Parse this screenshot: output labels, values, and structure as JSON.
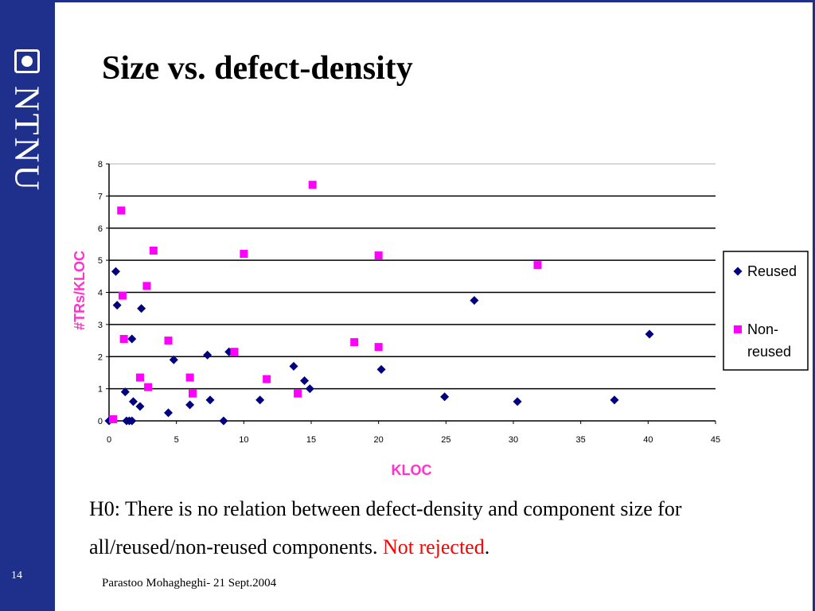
{
  "slide": {
    "title": "Size vs. defect-density",
    "page_number": "14",
    "footer": "Parastoo Mohagheghi- 21 Sept.2004",
    "logo_text": "NTNU",
    "body_text": "H0: There is no relation between defect-density and component size for all/reused/non-reused components.",
    "highlight_text": "Not rejected",
    "trailing_text": ".",
    "colors": {
      "sidebar": "#1f2f8c",
      "highlight": "#ff0000",
      "axis_label": "#ff33cc"
    }
  },
  "chart_data": {
    "type": "scatter",
    "title": "",
    "xlabel": "KLOC",
    "ylabel": "#TRs/KLOC",
    "xlim": [
      0,
      45
    ],
    "ylim": [
      0,
      8
    ],
    "x_ticks": [
      0,
      5,
      10,
      15,
      20,
      25,
      30,
      35,
      40,
      45
    ],
    "y_ticks": [
      0,
      1,
      2,
      3,
      4,
      5,
      6,
      7,
      8
    ],
    "grid": "horizontal",
    "legend": "right",
    "series": [
      {
        "name": "Reused",
        "marker": "diamond",
        "color": "#000080",
        "points": [
          [
            0,
            0
          ],
          [
            0.5,
            4.65
          ],
          [
            0.6,
            3.6
          ],
          [
            1.2,
            0.9
          ],
          [
            1.3,
            0
          ],
          [
            1.5,
            0
          ],
          [
            1.7,
            2.55
          ],
          [
            1.7,
            0
          ],
          [
            1.8,
            0.6
          ],
          [
            2.3,
            0.45
          ],
          [
            2.4,
            3.5
          ],
          [
            4.4,
            0.25
          ],
          [
            4.8,
            1.9
          ],
          [
            6,
            0.5
          ],
          [
            7.3,
            2.05
          ],
          [
            7.5,
            0.65
          ],
          [
            8.5,
            0
          ],
          [
            8.9,
            2.15
          ],
          [
            11.2,
            0.65
          ],
          [
            13.7,
            1.7
          ],
          [
            14.5,
            1.25
          ],
          [
            14.9,
            1
          ],
          [
            20.2,
            1.6
          ],
          [
            24.9,
            0.75
          ],
          [
            27.1,
            3.75
          ],
          [
            30.3,
            0.6
          ],
          [
            37.5,
            0.65
          ],
          [
            40.1,
            2.7
          ]
        ]
      },
      {
        "name": "Non-reused",
        "marker": "square",
        "color": "#ff00ff",
        "points": [
          [
            0.3,
            0.05
          ],
          [
            0.9,
            6.55
          ],
          [
            1,
            3.9
          ],
          [
            1.1,
            2.55
          ],
          [
            2.3,
            1.35
          ],
          [
            2.8,
            4.2
          ],
          [
            2.9,
            1.05
          ],
          [
            3.3,
            5.3
          ],
          [
            4.4,
            2.5
          ],
          [
            6,
            1.35
          ],
          [
            6.2,
            0.85
          ],
          [
            9.3,
            2.15
          ],
          [
            10,
            5.2
          ],
          [
            11.7,
            1.3
          ],
          [
            14,
            0.85
          ],
          [
            15.1,
            7.35
          ],
          [
            18.2,
            2.45
          ],
          [
            20,
            2.3
          ],
          [
            20,
            5.15
          ],
          [
            31.8,
            4.85
          ]
        ]
      }
    ]
  }
}
